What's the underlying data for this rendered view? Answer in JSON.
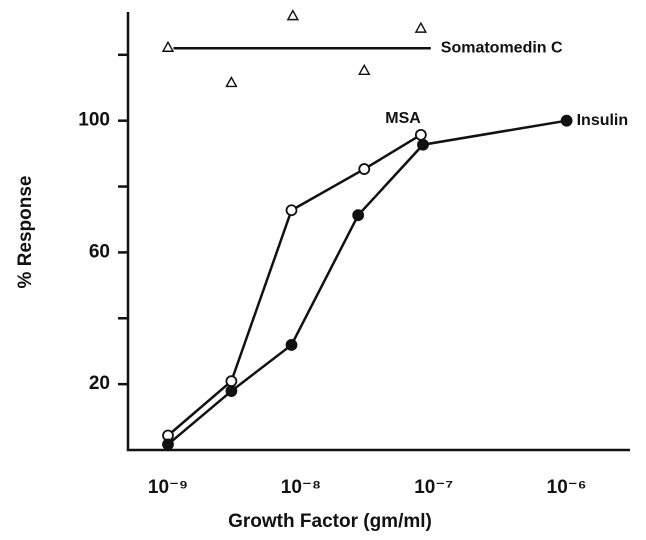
{
  "chart_data": {
    "type": "line",
    "x_label": "Growth Factor (gm/ml)",
    "y_label": "% Response",
    "xscale": "log",
    "xlim": [
      5e-10,
      3e-06
    ],
    "xticks": [
      {
        "value": 1e-09,
        "label": "10⁻⁹"
      },
      {
        "value": 1e-08,
        "label": "10⁻⁸"
      },
      {
        "value": 1e-07,
        "label": "10⁻⁷"
      },
      {
        "value": 1e-06,
        "label": "10⁻⁶"
      }
    ],
    "ylim": [
      0,
      133
    ],
    "yticks": [
      20,
      60,
      100
    ],
    "yminorticks": [
      40,
      80,
      120
    ],
    "grid": false,
    "series": [
      {
        "name": "Somatomedin C",
        "color": "#111111",
        "marker": "triangle",
        "connected": false,
        "label_position": "fit-right",
        "x": [
          1e-09,
          3e-09,
          8.7e-09,
          3e-08,
          8e-08
        ],
        "values": [
          122.3,
          111.6,
          131.9,
          115.3,
          128.1
        ],
        "fit": {
          "x": [
            1.1e-09,
            9.5e-08
          ],
          "values": [
            122,
            122
          ]
        }
      },
      {
        "name": "MSA",
        "color": "#111111",
        "marker": "open-circle",
        "connected": true,
        "label_position": "above",
        "x": [
          1e-09,
          3e-09,
          8.5e-09,
          3e-08,
          8e-08
        ],
        "values": [
          4.4,
          20.9,
          72.8,
          85.3,
          95.7
        ]
      },
      {
        "name": "Insulin",
        "color": "#111111",
        "marker": "filled-circle",
        "connected": true,
        "label_position": "right",
        "x": [
          1e-09,
          3e-09,
          8.5e-09,
          2.7e-08,
          8.3e-08,
          1e-06
        ],
        "values": [
          1.7,
          17.9,
          31.9,
          71.3,
          92.7,
          100
        ]
      }
    ]
  }
}
